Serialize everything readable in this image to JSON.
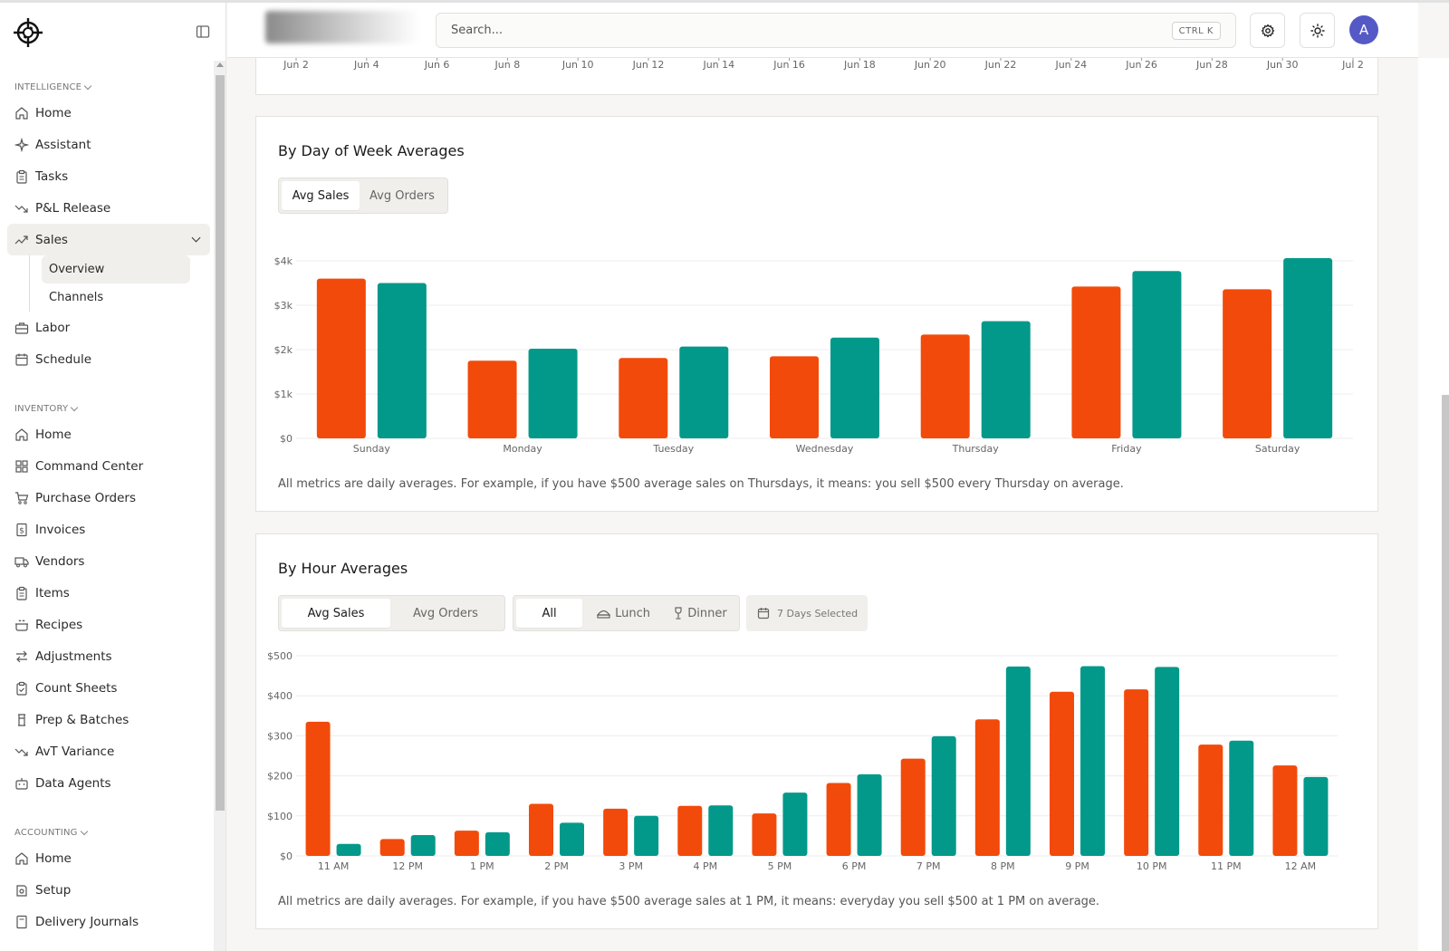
{
  "sidebar": {
    "sections": [
      {
        "title": "INTELLIGENCE",
        "items": [
          {
            "label": "Home",
            "icon": "home-icon"
          },
          {
            "label": "Assistant",
            "icon": "sparkles-icon"
          },
          {
            "label": "Tasks",
            "icon": "clipboard-icon"
          },
          {
            "label": "P&L Release",
            "icon": "trend-down-icon"
          },
          {
            "label": "Sales",
            "icon": "trend-up-icon",
            "active": true,
            "expanded": true,
            "children": [
              {
                "label": "Overview",
                "active": true
              },
              {
                "label": "Channels"
              }
            ]
          },
          {
            "label": "Labor",
            "icon": "briefcase-icon"
          },
          {
            "label": "Schedule",
            "icon": "calendar-icon"
          }
        ]
      },
      {
        "title": "INVENTORY",
        "items": [
          {
            "label": "Home",
            "icon": "home-icon"
          },
          {
            "label": "Command Center",
            "icon": "grid-icon"
          },
          {
            "label": "Purchase Orders",
            "icon": "cart-icon"
          },
          {
            "label": "Invoices",
            "icon": "dollar-doc-icon"
          },
          {
            "label": "Vendors",
            "icon": "truck-icon"
          },
          {
            "label": "Items",
            "icon": "clipboard-icon"
          },
          {
            "label": "Recipes",
            "icon": "cooking-pot-icon"
          },
          {
            "label": "Adjustments",
            "icon": "arrows-icon"
          },
          {
            "label": "Count Sheets",
            "icon": "clipboard-check-icon"
          },
          {
            "label": "Prep & Batches",
            "icon": "cylinder-icon"
          },
          {
            "label": "AvT Variance",
            "icon": "trend-down-icon"
          },
          {
            "label": "Data Agents",
            "icon": "bot-icon"
          }
        ]
      },
      {
        "title": "ACCOUNTING",
        "items": [
          {
            "label": "Home",
            "icon": "home-icon"
          },
          {
            "label": "Setup",
            "icon": "setup-icon"
          },
          {
            "label": "Delivery Journals",
            "icon": "journal-icon"
          }
        ]
      }
    ]
  },
  "header": {
    "search_placeholder": "Search...",
    "shortcut": "CTRL K",
    "avatar_initial": "A"
  },
  "top_axis": {
    "ticks": [
      "Jun 2",
      "Jun 4",
      "Jun 6",
      "Jun 8",
      "Jun 10",
      "Jun 12",
      "Jun 14",
      "Jun 16",
      "Jun 18",
      "Jun 20",
      "Jun 22",
      "Jun 24",
      "Jun 26",
      "Jun 28",
      "Jun 30",
      "Jul 2"
    ]
  },
  "dow": {
    "title": "By Day of Week Averages",
    "toggle": [
      "Avg Sales",
      "Avg Orders"
    ],
    "toggle_selected": "Avg Sales",
    "note": "All metrics are daily averages. For example, if you have $500 average sales on Thursdays, it means: you sell $500 every Thursday on average."
  },
  "hour": {
    "title": "By Hour Averages",
    "toggle": [
      "Avg Sales",
      "Avg Orders"
    ],
    "toggle_selected": "Avg Sales",
    "meal_filter": [
      "All",
      "Lunch",
      "Dinner"
    ],
    "meal_selected": "All",
    "days_selected": "7 Days Selected",
    "note": "All metrics are daily averages. For example, if you have $500 average sales at 1 PM, it means: everyday you sell $500 at 1 PM on average."
  },
  "colors": {
    "series_a": "#f24a0a",
    "series_b": "#03998a"
  },
  "chart_data": [
    {
      "type": "bar",
      "title": "By Day of Week Averages",
      "categories": [
        "Sunday",
        "Monday",
        "Tuesday",
        "Wednesday",
        "Thursday",
        "Friday",
        "Saturday"
      ],
      "series": [
        {
          "values": [
            3600,
            1750,
            1810,
            1850,
            2340,
            3420,
            3360
          ]
        },
        {
          "values": [
            3500,
            2020,
            2070,
            2270,
            2640,
            3770,
            4060
          ]
        }
      ],
      "yticks": [
        "$0",
        "$1k",
        "$2k",
        "$3k",
        "$4k"
      ],
      "ylim": [
        0,
        4000
      ],
      "grid": true
    },
    {
      "type": "bar",
      "title": "By Hour Averages",
      "categories": [
        "11 AM",
        "12 PM",
        "1 PM",
        "2 PM",
        "3 PM",
        "4 PM",
        "5 PM",
        "6 PM",
        "7 PM",
        "8 PM",
        "9 PM",
        "10 PM",
        "11 PM",
        "12 AM"
      ],
      "series": [
        {
          "values": [
            335,
            42,
            63,
            130,
            118,
            125,
            106,
            182,
            243,
            341,
            410,
            416,
            278,
            226
          ]
        },
        {
          "values": [
            30,
            52,
            59,
            83,
            100,
            126,
            158,
            204,
            299,
            473,
            474,
            472,
            288,
            197
          ]
        }
      ],
      "yticks": [
        "$0",
        "$100",
        "$200",
        "$300",
        "$400",
        "$500"
      ],
      "ylim": [
        0,
        500
      ],
      "grid": true
    }
  ]
}
